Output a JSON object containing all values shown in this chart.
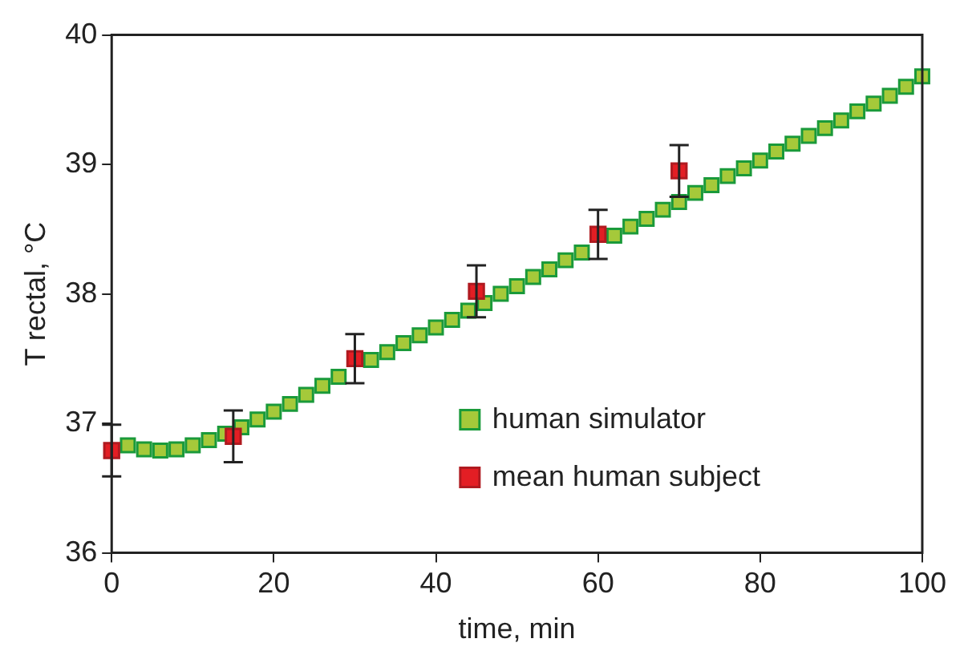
{
  "chart_data": {
    "type": "scatter",
    "xlabel": "time, min",
    "ylabel": "T rectal, °C",
    "xlim": [
      0,
      100
    ],
    "xticks": [
      0,
      20,
      40,
      60,
      80,
      100
    ],
    "ylim": [
      36,
      40
    ],
    "yticks": [
      36,
      37,
      38,
      39,
      40
    ],
    "grid": false,
    "legend": "bottom right",
    "marker": "square",
    "series": [
      {
        "name": "human simulator",
        "color": "#a5c93a",
        "x": [
          2,
          4,
          6,
          8,
          10,
          12,
          14,
          16,
          18,
          20,
          22,
          24,
          26,
          28,
          32,
          34,
          36,
          38,
          40,
          42,
          44,
          46,
          48,
          50,
          52,
          54,
          56,
          58,
          62,
          64,
          66,
          68,
          70,
          72,
          74,
          76,
          78,
          80,
          82,
          84,
          86,
          88,
          90,
          92,
          94,
          96,
          98,
          100
        ],
        "values": [
          36.83,
          36.8,
          36.79,
          36.8,
          36.83,
          36.87,
          36.92,
          36.97,
          37.03,
          37.09,
          37.15,
          37.22,
          37.29,
          37.36,
          37.49,
          37.55,
          37.62,
          37.68,
          37.74,
          37.8,
          37.87,
          37.93,
          38.0,
          38.06,
          38.13,
          38.19,
          38.26,
          38.32,
          38.45,
          38.52,
          38.58,
          38.65,
          38.71,
          38.78,
          38.84,
          38.91,
          38.97,
          39.03,
          39.1,
          39.16,
          39.22,
          39.28,
          39.34,
          39.41,
          39.47,
          39.53,
          39.6,
          39.68
        ]
      },
      {
        "name": "mean human subject",
        "color": "#e31e24",
        "x": [
          0,
          15,
          30,
          45,
          60,
          70
        ],
        "values": [
          36.79,
          36.9,
          37.5,
          38.02,
          38.46,
          38.95
        ],
        "errors": [
          0.2,
          0.2,
          0.19,
          0.2,
          0.19,
          0.2
        ]
      }
    ]
  }
}
